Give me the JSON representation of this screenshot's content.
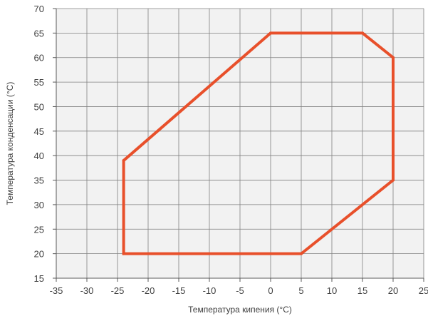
{
  "chart_data": {
    "type": "area",
    "title": "",
    "xlabel": "Температура кипения (°C)",
    "ylabel": "Температура конденсации (°C)",
    "xlim": [
      -35,
      25
    ],
    "ylim": [
      15,
      70
    ],
    "x_ticks": [
      -35,
      -30,
      -25,
      -20,
      -15,
      -10,
      -5,
      0,
      5,
      10,
      15,
      20,
      25
    ],
    "y_ticks": [
      15,
      20,
      25,
      30,
      35,
      40,
      45,
      50,
      55,
      60,
      65,
      70
    ],
    "grid": true,
    "series": [
      {
        "points": [
          {
            "x": -24,
            "y": 39
          },
          {
            "x": 0,
            "y": 65
          },
          {
            "x": 15,
            "y": 65
          },
          {
            "x": 20,
            "y": 60
          },
          {
            "x": 20,
            "y": 35
          },
          {
            "x": 5,
            "y": 20
          },
          {
            "x": -24,
            "y": 20
          }
        ],
        "closed": true,
        "color": "#E8502B"
      }
    ],
    "colors": {
      "plot_background": "#F2F2F2",
      "grid": "#808080",
      "axis": "#595959",
      "text": "#404040"
    }
  }
}
